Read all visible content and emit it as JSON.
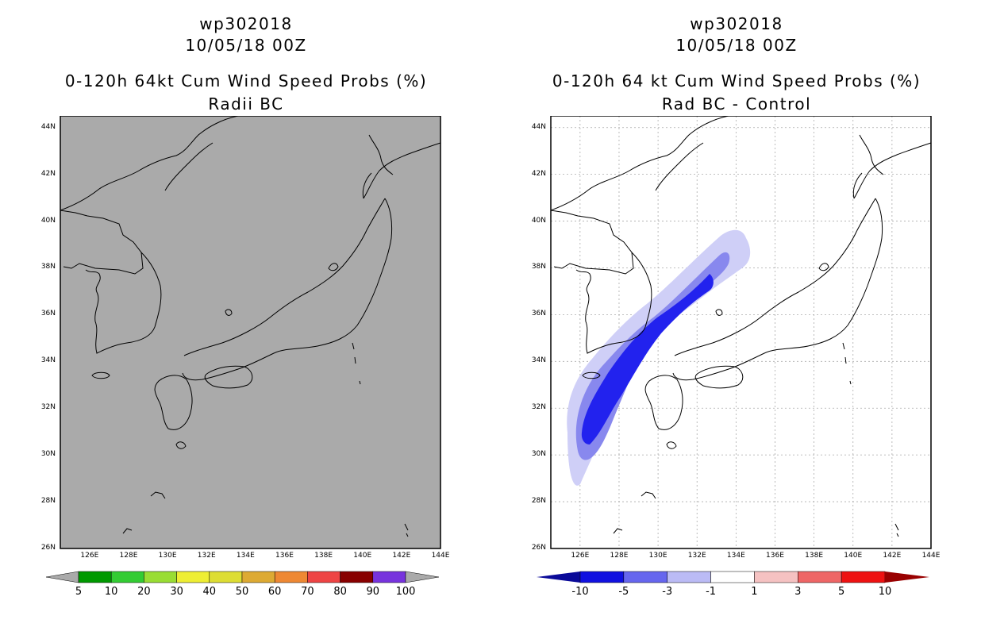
{
  "left_panel": {
    "title_id": "wp302018",
    "title_date": "10/05/18 00Z",
    "title_product": "0-120h 64kt Cum Wind Speed Probs (%)",
    "title_sub": "Radii BC",
    "colorbar": {
      "labels": [
        "5",
        "10",
        "20",
        "30",
        "40",
        "50",
        "60",
        "70",
        "80",
        "90",
        "100"
      ],
      "colors": [
        "#009900",
        "#33cc33",
        "#99dd33",
        "#eeee33",
        "#dddd33",
        "#ddaa33",
        "#ee8833",
        "#ee4444",
        "#880000",
        "#7733dd"
      ],
      "extend_color": "#aaaaaa"
    },
    "map_background": "#aaaaaa"
  },
  "right_panel": {
    "title_id": "wp302018",
    "title_date": "10/05/18 00Z",
    "title_product": "0-120h 64 kt Cum Wind Speed Probs (%)",
    "title_sub": "Rad BC - Control",
    "colorbar": {
      "labels": [
        "-10",
        "-5",
        "-3",
        "-1",
        "1",
        "3",
        "5",
        "10"
      ],
      "colors": [
        "#1010e0",
        "#6666ee",
        "#bbbbf5",
        "#ffffff",
        "#f5c2c2",
        "#ee6666",
        "#ee1111"
      ],
      "extend_low_color": "#0a0a99",
      "extend_high_color": "#990000"
    },
    "shading": {
      "outer": "#cfcff7",
      "middle": "#8888ee",
      "inner": "#2222ee"
    }
  },
  "axes": {
    "lat_labels": [
      "44N",
      "42N",
      "40N",
      "38N",
      "36N",
      "34N",
      "32N",
      "30N",
      "28N",
      "26N"
    ],
    "lon_labels": [
      "126E",
      "128E",
      "130E",
      "132E",
      "134E",
      "136E",
      "138E",
      "140E",
      "142E",
      "144E"
    ]
  }
}
